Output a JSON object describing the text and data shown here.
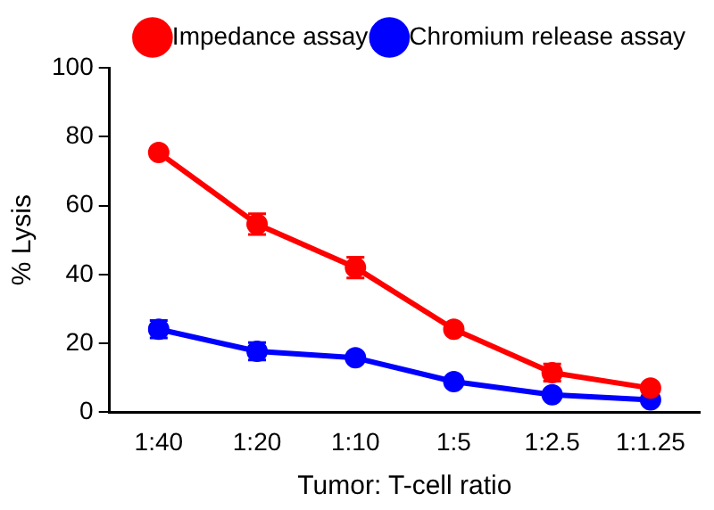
{
  "chart_data": {
    "type": "line",
    "xlabel": "Tumor: T-cell ratio",
    "ylabel": "% Lysis",
    "categories": [
      "1:40",
      "1:20",
      "1:10",
      "1:5",
      "1:2.5",
      "1:1.25"
    ],
    "series": [
      {
        "name": "Impedance assay",
        "color": "#ff0000",
        "values": [
          75.4,
          54.6,
          42,
          24.1,
          11.5,
          7
        ],
        "errors": [
          null,
          3,
          3,
          null,
          2.5,
          null
        ]
      },
      {
        "name": "Chromium release assay",
        "color": "#0000ff",
        "values": [
          24.1,
          17.7,
          15.8,
          8.9,
          5.1,
          3.6
        ],
        "errors": [
          2.5,
          2.5,
          null,
          null,
          null,
          null
        ]
      }
    ],
    "ylim": [
      0,
      100
    ],
    "yticks": [
      0,
      20,
      40,
      60,
      80,
      100
    ],
    "grid": false,
    "legend": "top right",
    "marker": "circle"
  }
}
